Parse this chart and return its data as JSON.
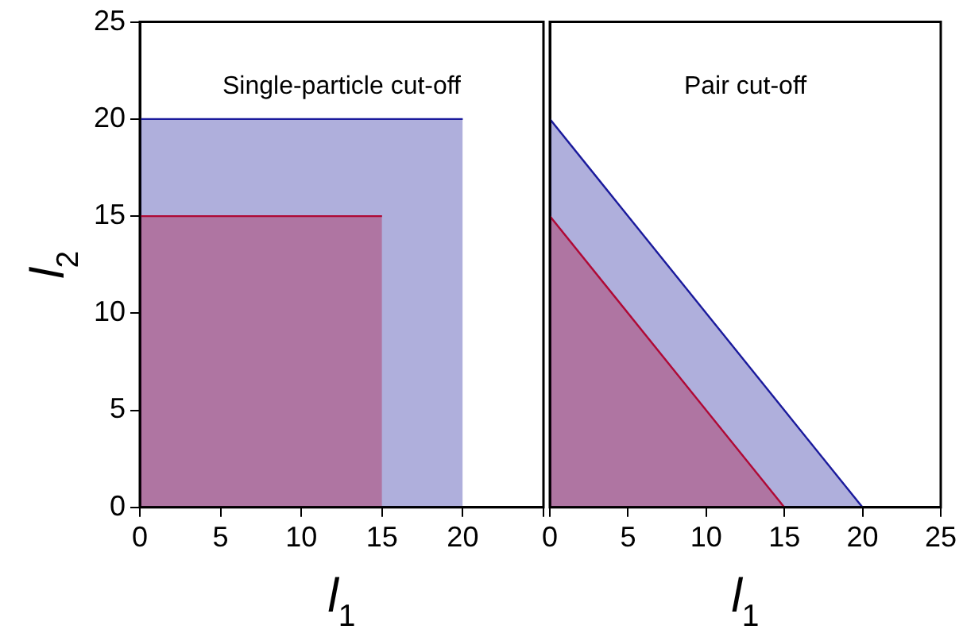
{
  "chart_data": [
    {
      "type": "area",
      "xlabel": "l$_{1}$",
      "ylabel": "l$_{2}$",
      "annotations": [
        "Single-particle cut-off"
      ],
      "xlim": [
        0,
        25
      ],
      "xticks": [
        0,
        5,
        10,
        15,
        20,
        {
          "value": 25,
          "label": null
        }
      ],
      "ylim": [
        0,
        25
      ],
      "yticks": [
        0,
        5,
        10,
        15,
        20,
        25
      ],
      "grid": false,
      "legend": false,
      "marker": "none",
      "series": [
        {
          "color": "#1a1a9c",
          "x": [
            0,
            20
          ],
          "values": [
            20,
            20
          ]
        },
        {
          "color": "#ff0000",
          "x": [
            0,
            15
          ],
          "values": [
            15,
            15
          ]
        }
      ]
    },
    {
      "type": "area",
      "xlabel": "l$_{1}$",
      "annotations": [
        "Pair cut-off"
      ],
      "xlim": [
        0,
        25
      ],
      "xticks": [
        0,
        5,
        10,
        15,
        20,
        25
      ],
      "ylim": [
        0,
        25
      ],
      "yticks": [
        0,
        5,
        10,
        15,
        20,
        25
      ],
      "tick_labels": "x",
      "grid": false,
      "legend": false,
      "marker": "none",
      "series": [
        {
          "color": "#1a1a9c",
          "x": [
            0,
            20
          ],
          "values": [
            20,
            0
          ]
        },
        {
          "color": "#ff0000",
          "x": [
            0,
            15
          ],
          "values": [
            15,
            0
          ]
        }
      ]
    }
  ]
}
